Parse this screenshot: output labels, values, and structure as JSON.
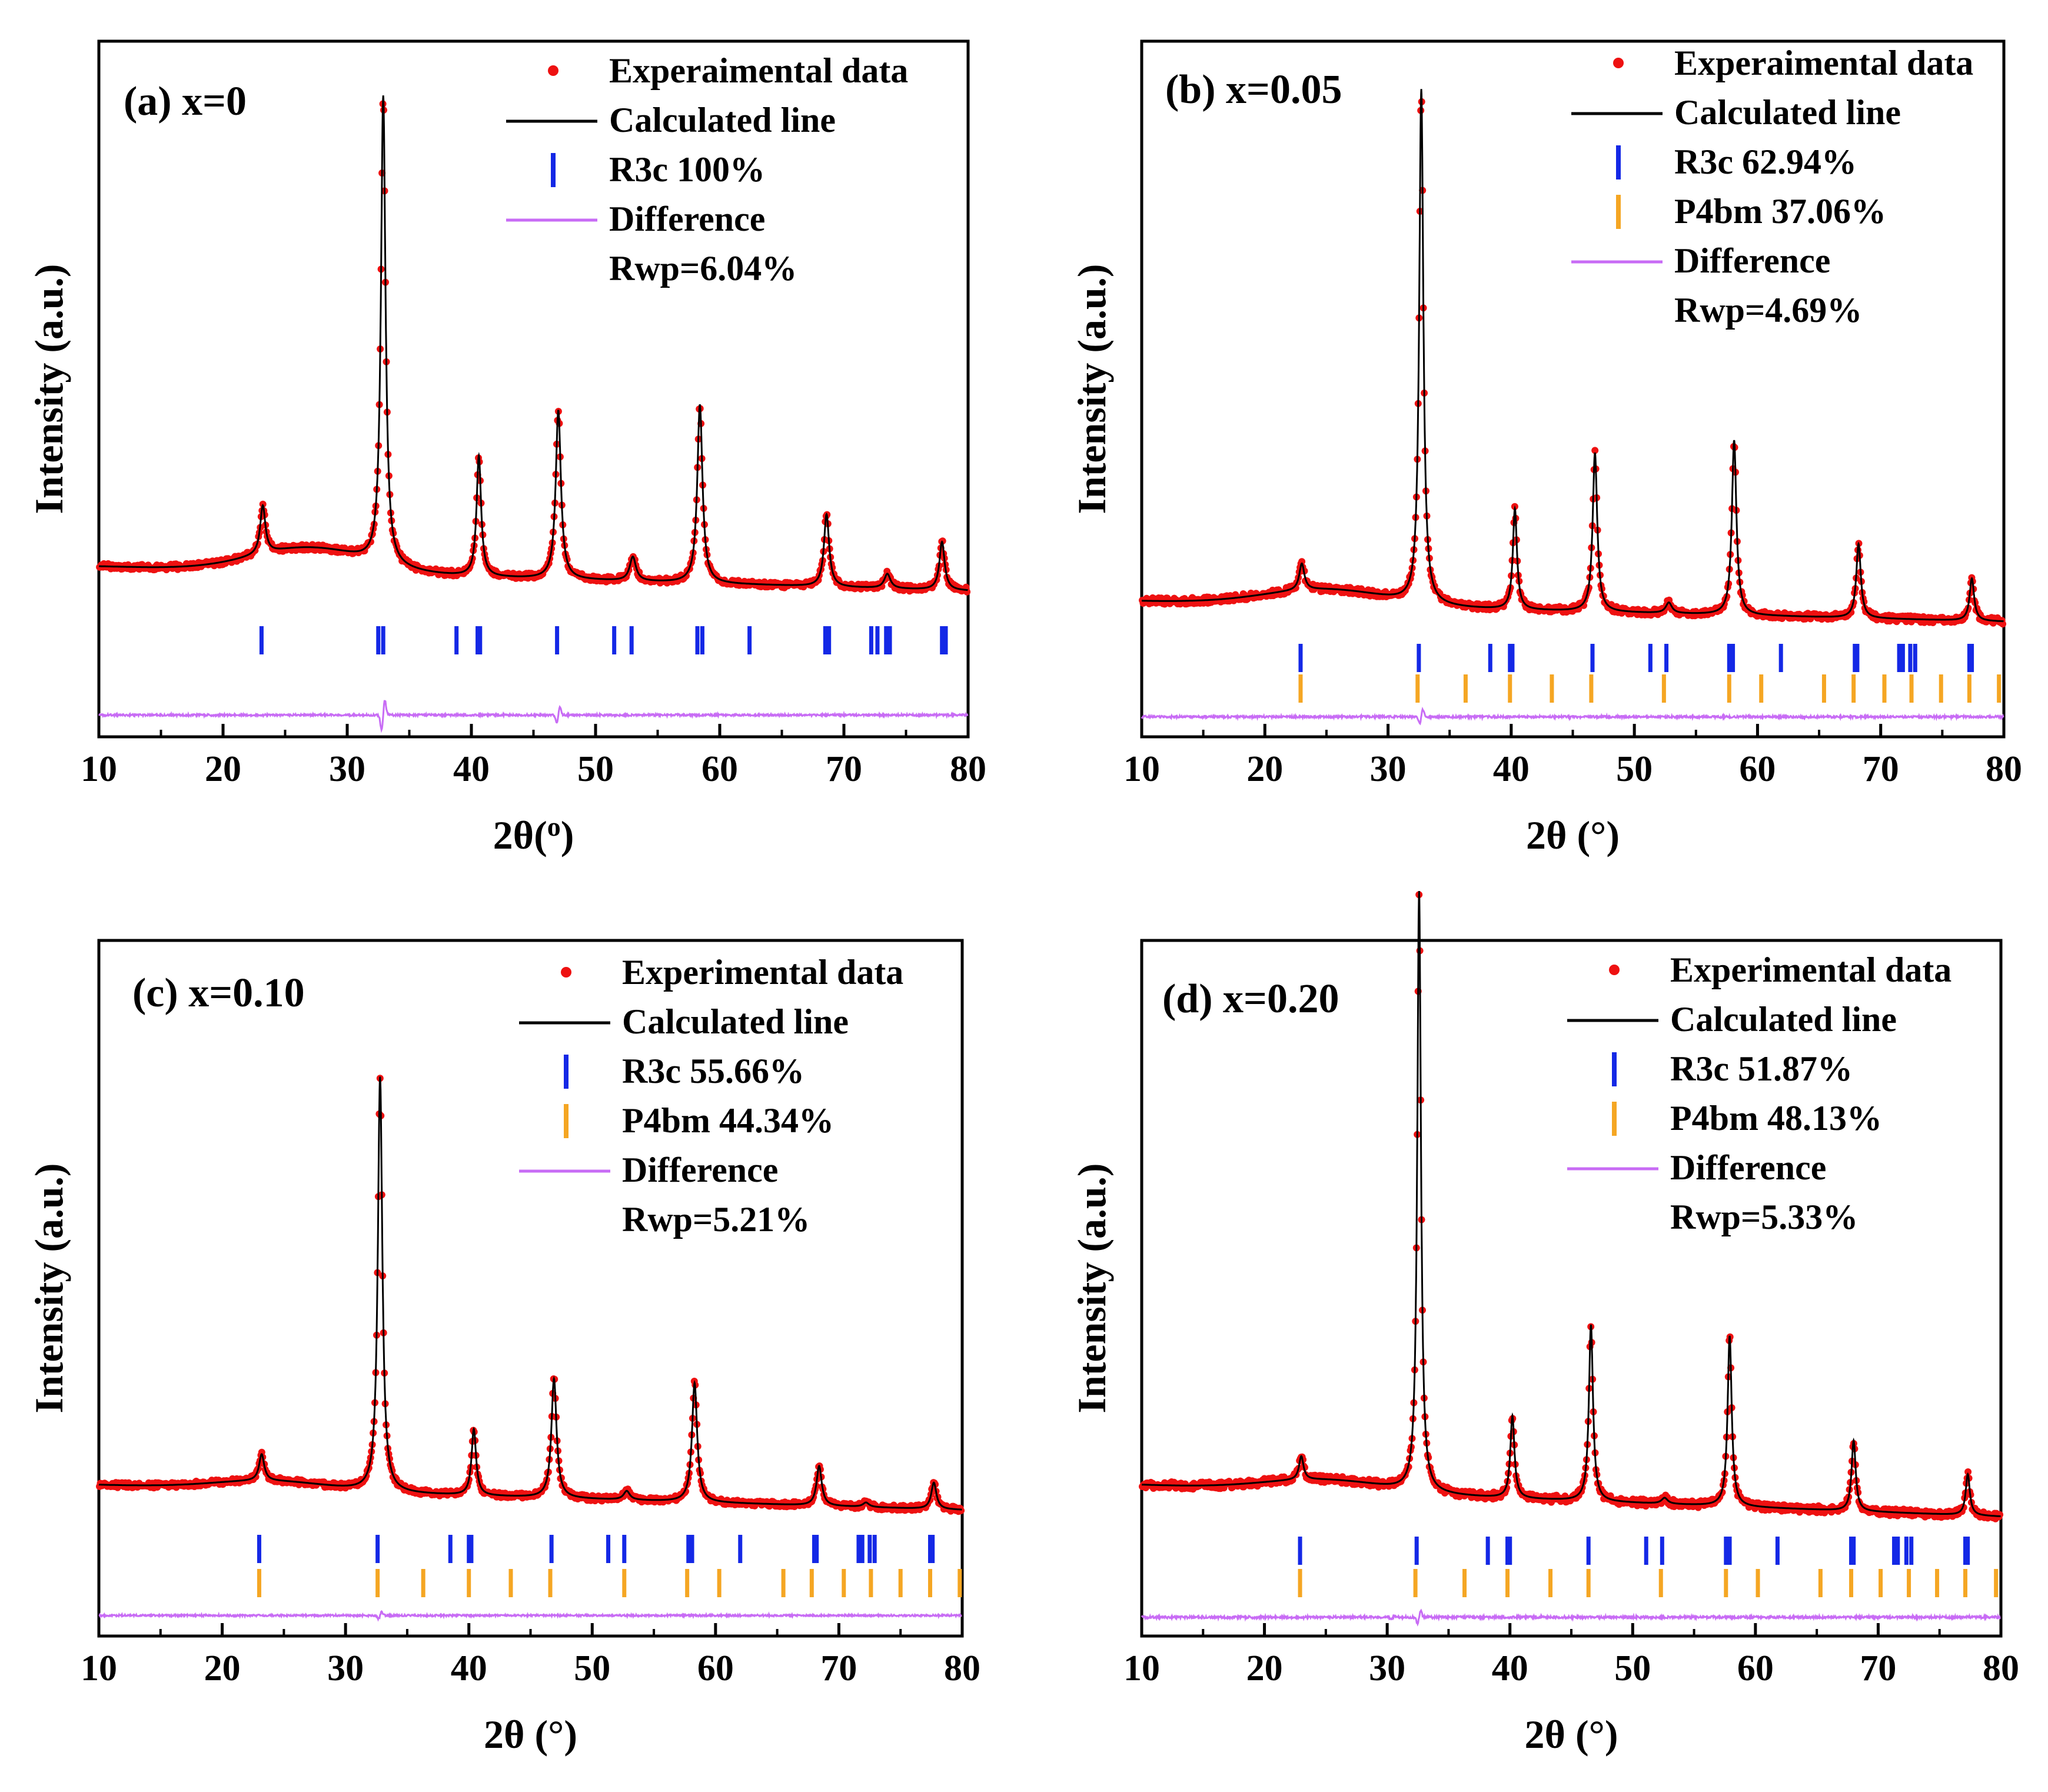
{
  "figure": {
    "background": "#ffffff",
    "colors": {
      "experimental": "#ee1111",
      "calculated": "#000000",
      "r3c_ticks": "#1428e6",
      "p4bm_ticks": "#f5a623",
      "difference": "#c86cf5"
    }
  },
  "chart_data": [
    {
      "type": "line",
      "panel": "a",
      "label": "(a) x=0",
      "xlabel": "2θ(o)",
      "ylabel": "Intensity (a.u.)",
      "xlim": [
        10,
        80
      ],
      "xticks": [
        "10",
        "20",
        "30",
        "40",
        "50",
        "60",
        "70",
        "80"
      ],
      "legend": [
        {
          "kind": "dot",
          "color": "#ee1111",
          "text": "Experaimental data"
        },
        {
          "kind": "line",
          "color": "#000000",
          "text": "Calculated line"
        },
        {
          "kind": "tick",
          "color": "#1428e6",
          "text": "R3c  100%"
        },
        {
          "kind": "line",
          "color": "#c86cf5",
          "text": "Difference"
        },
        {
          "kind": "none",
          "color": "",
          "text": "Rwp=6.04%"
        }
      ],
      "phases": [
        {
          "name": "R3c",
          "fraction_pct": 100,
          "color": "#1428e6",
          "positions": [
            23.1,
            32.5,
            32.9,
            38.8,
            40.5,
            40.7,
            46.9,
            51.5,
            52.9,
            58.2,
            58.6,
            62.4,
            68.5,
            68.8,
            72.2,
            72.7,
            73.4,
            73.7,
            77.9,
            78.2
          ]
        }
      ],
      "peaks": [
        {
          "x": 23.2,
          "h": 0.1,
          "w": 0.25
        },
        {
          "x": 32.9,
          "h": 0.97,
          "w": 0.22
        },
        {
          "x": 40.6,
          "h": 0.25,
          "w": 0.22
        },
        {
          "x": 47.0,
          "h": 0.35,
          "w": 0.25
        },
        {
          "x": 53.0,
          "h": 0.05,
          "w": 0.3
        },
        {
          "x": 58.4,
          "h": 0.37,
          "w": 0.25
        },
        {
          "x": 68.6,
          "h": 0.15,
          "w": 0.25
        },
        {
          "x": 73.5,
          "h": 0.03,
          "w": 0.3
        },
        {
          "x": 77.9,
          "h": 0.1,
          "w": 0.25
        }
      ],
      "background": {
        "base": 0.17,
        "hump_amp": 0.05,
        "hump_center": 27,
        "hump_width": 6.5
      },
      "difference_spikes": [
        {
          "x": 32.9,
          "amp": 0.12
        },
        {
          "x": 47.0,
          "amp": 0.06
        }
      ],
      "rwp_pct": 6.04
    },
    {
      "type": "line",
      "panel": "b",
      "label": "(b) x=0.05",
      "xlabel": "2θ (°)",
      "ylabel": "Intensity (a.u.)",
      "xlim": [
        10,
        80
      ],
      "xticks": [
        "10",
        "20",
        "30",
        "40",
        "50",
        "60",
        "70",
        "80"
      ],
      "legend": [
        {
          "kind": "dot",
          "color": "#ee1111",
          "text": "Experaimental data"
        },
        {
          "kind": "line",
          "color": "#000000",
          "text": "Calculated line"
        },
        {
          "kind": "tick",
          "color": "#1428e6",
          "text": "R3c   62.94%"
        },
        {
          "kind": "tick",
          "color": "#f5a623",
          "text": "P4bm 37.06%"
        },
        {
          "kind": "line",
          "color": "#c86cf5",
          "text": "Difference"
        },
        {
          "kind": "none",
          "color": "",
          "text": "Rwp=4.69%"
        }
      ],
      "phases": [
        {
          "name": "R3c",
          "fraction_pct": 62.94,
          "color": "#1428e6",
          "positions": [
            22.9,
            32.5,
            38.3,
            39.9,
            40.1,
            46.6,
            51.3,
            52.6,
            57.7,
            58.0,
            61.9,
            67.9,
            68.1,
            71.5,
            71.8,
            72.4,
            72.8,
            77.2,
            77.4
          ]
        },
        {
          "name": "P4bm",
          "fraction_pct": 37.06,
          "color": "#f5a623",
          "positions": [
            22.9,
            32.4,
            36.3,
            39.9,
            43.3,
            46.5,
            52.4,
            57.7,
            60.3,
            65.4,
            67.8,
            70.3,
            72.5,
            74.9,
            77.2,
            79.6
          ]
        }
      ],
      "peaks": [
        {
          "x": 23.0,
          "h": 0.05,
          "w": 0.25
        },
        {
          "x": 32.7,
          "h": 0.97,
          "w": 0.2
        },
        {
          "x": 40.3,
          "h": 0.19,
          "w": 0.2
        },
        {
          "x": 46.8,
          "h": 0.3,
          "w": 0.22
        },
        {
          "x": 52.8,
          "h": 0.02,
          "w": 0.3
        },
        {
          "x": 58.1,
          "h": 0.33,
          "w": 0.22
        },
        {
          "x": 68.2,
          "h": 0.14,
          "w": 0.22
        },
        {
          "x": 77.4,
          "h": 0.08,
          "w": 0.22
        }
      ],
      "background": {
        "base": 0.13,
        "hump_amp": 0.03,
        "hump_center": 25,
        "hump_width": 7
      },
      "difference_spikes": [
        {
          "x": 32.7,
          "amp": 0.05
        }
      ],
      "rwp_pct": 4.69
    },
    {
      "type": "line",
      "panel": "c",
      "label": "(c) x=0.10",
      "xlabel": "2θ (°)",
      "ylabel": "Intensity (a.u.)",
      "xlim": [
        10,
        80
      ],
      "xticks": [
        "10",
        "20",
        "30",
        "40",
        "50",
        "60",
        "70",
        "80"
      ],
      "legend": [
        {
          "kind": "dot",
          "color": "#ee1111",
          "text": "Experimental data"
        },
        {
          "kind": "line",
          "color": "#000000",
          "text": "Calculated line"
        },
        {
          "kind": "tick",
          "color": "#1428e6",
          "text": "R3c   55.66%"
        },
        {
          "kind": "tick",
          "color": "#f5a623",
          "text": "P4bm 44.34%"
        },
        {
          "kind": "line",
          "color": "#c86cf5",
          "text": "Difference"
        },
        {
          "kind": "none",
          "color": "",
          "text": "Rwp=5.21%"
        }
      ],
      "phases": [
        {
          "name": "R3c",
          "fraction_pct": 55.66,
          "color": "#1428e6",
          "positions": [
            23.0,
            32.6,
            38.5,
            40.0,
            40.2,
            46.7,
            51.3,
            52.6,
            57.8,
            58.1,
            62.0,
            68.0,
            68.2,
            71.6,
            71.9,
            72.5,
            72.9,
            77.4,
            77.6
          ]
        },
        {
          "name": "P4bm",
          "fraction_pct": 44.34,
          "color": "#f5a623",
          "positions": [
            23.0,
            32.6,
            36.3,
            40.0,
            43.4,
            46.6,
            52.6,
            57.7,
            60.3,
            65.5,
            67.8,
            70.4,
            72.6,
            75.0,
            77.4,
            79.8
          ]
        }
      ],
      "peaks": [
        {
          "x": 23.2,
          "h": 0.06,
          "w": 0.25
        },
        {
          "x": 32.8,
          "h": 0.94,
          "w": 0.22
        },
        {
          "x": 40.4,
          "h": 0.15,
          "w": 0.22
        },
        {
          "x": 46.9,
          "h": 0.27,
          "w": 0.25
        },
        {
          "x": 52.8,
          "h": 0.02,
          "w": 0.3
        },
        {
          "x": 58.3,
          "h": 0.27,
          "w": 0.25
        },
        {
          "x": 68.4,
          "h": 0.09,
          "w": 0.25
        },
        {
          "x": 72.2,
          "h": 0.01,
          "w": 0.3
        },
        {
          "x": 77.7,
          "h": 0.06,
          "w": 0.25
        }
      ],
      "background": {
        "base": 0.19,
        "hump_amp": 0.02,
        "hump_center": 24,
        "hump_width": 6.5
      },
      "difference_spikes": [
        {
          "x": 32.8,
          "amp": 0.03
        }
      ],
      "rwp_pct": 5.21
    },
    {
      "type": "line",
      "panel": "d",
      "label": "(d) x=0.20",
      "xlabel": "2θ (°)",
      "ylabel": "Intensity (a.u.)",
      "xlim": [
        10,
        80
      ],
      "xticks": [
        "10",
        "20",
        "30",
        "40",
        "50",
        "60",
        "70",
        "80"
      ],
      "legend": [
        {
          "kind": "dot",
          "color": "#ee1111",
          "text": "Experimental data"
        },
        {
          "kind": "line",
          "color": "#000000",
          "text": "Calculated line"
        },
        {
          "kind": "tick",
          "color": "#1428e6",
          "text": "R3c  51.87%"
        },
        {
          "kind": "tick",
          "color": "#f5a623",
          "text": "P4bm 48.13%"
        },
        {
          "kind": "line",
          "color": "#c86cf5",
          "text": "Difference"
        },
        {
          "kind": "none",
          "color": "",
          "text": "Rwp=5.33%"
        }
      ],
      "phases": [
        {
          "name": "R3c",
          "fraction_pct": 51.87,
          "color": "#1428e6",
          "positions": [
            22.9,
            32.4,
            38.2,
            39.8,
            40.0,
            46.4,
            51.1,
            52.4,
            57.6,
            57.9,
            61.8,
            67.8,
            68.0,
            71.3,
            71.6,
            72.3,
            72.7,
            77.1,
            77.3
          ]
        },
        {
          "name": "P4bm",
          "fraction_pct": 48.13,
          "color": "#f5a623",
          "positions": [
            22.9,
            32.3,
            36.3,
            39.8,
            43.3,
            46.4,
            52.3,
            57.6,
            60.2,
            65.3,
            67.8,
            70.2,
            72.5,
            74.8,
            77.1,
            79.6
          ]
        }
      ],
      "peaks": [
        {
          "x": 23.0,
          "h": 0.04,
          "w": 0.22
        },
        {
          "x": 32.6,
          "h": 1.02,
          "w": 0.18
        },
        {
          "x": 40.2,
          "h": 0.14,
          "w": 0.2
        },
        {
          "x": 46.6,
          "h": 0.3,
          "w": 0.2
        },
        {
          "x": 52.6,
          "h": 0.01,
          "w": 0.3
        },
        {
          "x": 57.9,
          "h": 0.29,
          "w": 0.2
        },
        {
          "x": 68.0,
          "h": 0.12,
          "w": 0.2
        },
        {
          "x": 77.3,
          "h": 0.07,
          "w": 0.2
        }
      ],
      "background": {
        "base": 0.18,
        "hump_amp": 0.02,
        "hump_center": 25,
        "hump_width": 7
      },
      "difference_spikes": [
        {
          "x": 32.6,
          "amp": 0.04
        },
        {
          "x": 30.5,
          "amp": 0.01
        }
      ],
      "rwp_pct": 5.33
    }
  ]
}
